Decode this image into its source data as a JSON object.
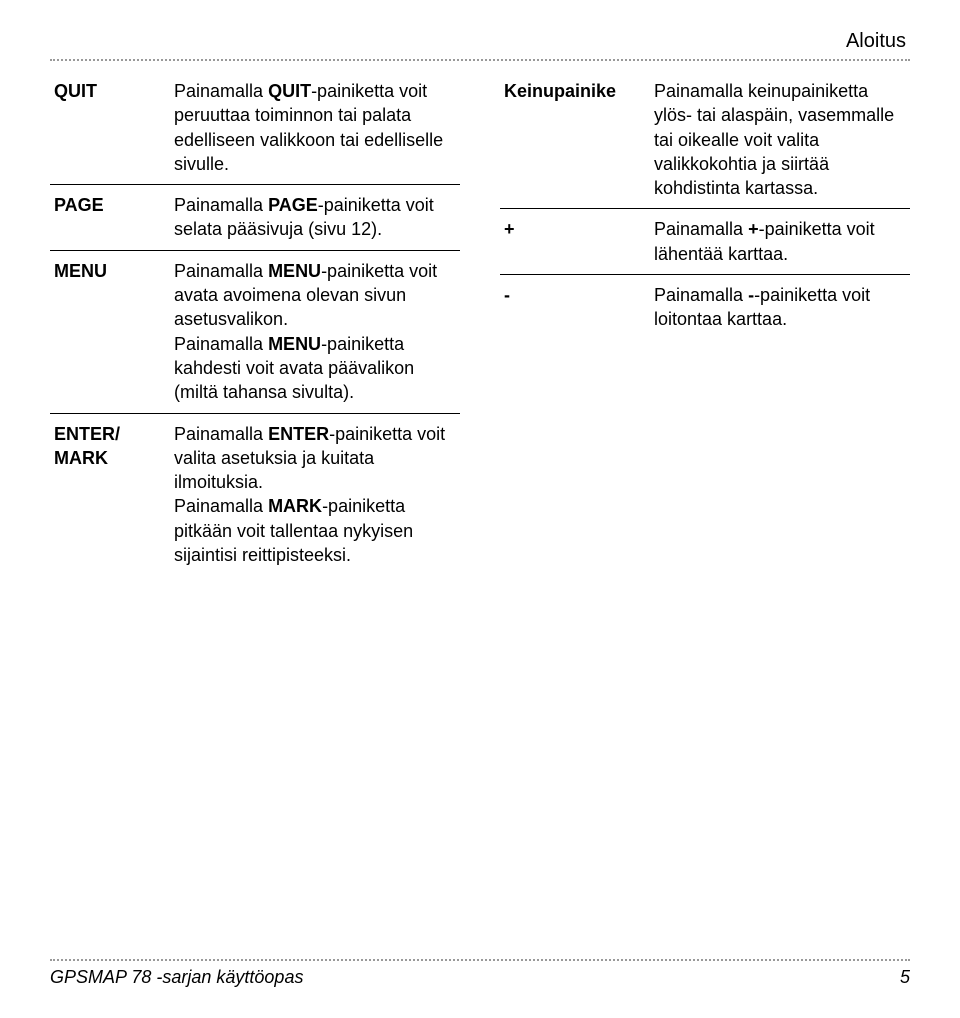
{
  "header": {
    "section": "Aloitus"
  },
  "left": {
    "rows": [
      {
        "key": "QUIT",
        "parts": [
          {
            "t": "Painamalla ",
            "b": false
          },
          {
            "t": "QUIT",
            "b": true
          },
          {
            "t": "-painiketta voit peruuttaa toiminnon tai palata edelliseen valikkoon tai edelliselle sivulle.",
            "b": false
          }
        ]
      },
      {
        "key": "PAGE",
        "parts": [
          {
            "t": "Painamalla ",
            "b": false
          },
          {
            "t": "PAGE",
            "b": true
          },
          {
            "t": "-painiketta voit selata pääsivuja (sivu 12).",
            "b": false
          }
        ]
      },
      {
        "key": "MENU",
        "parts": [
          {
            "t": "Painamalla ",
            "b": false
          },
          {
            "t": "MENU",
            "b": true
          },
          {
            "t": "-painiketta voit avata avoimena olevan sivun asetusvalikon.\nPainamalla ",
            "b": false
          },
          {
            "t": "MENU",
            "b": true
          },
          {
            "t": "-painiketta kahdesti voit avata päävalikon (miltä tahansa sivulta).",
            "b": false
          }
        ]
      },
      {
        "key": "ENTER/\nMARK",
        "parts": [
          {
            "t": "Painamalla ",
            "b": false
          },
          {
            "t": "ENTER",
            "b": true
          },
          {
            "t": "-painiketta voit valita asetuksia ja kuitata ilmoituksia.\nPainamalla ",
            "b": false
          },
          {
            "t": "MARK",
            "b": true
          },
          {
            "t": "-painiketta pitkään voit tallentaa nykyisen sijaintisi reittipisteeksi.",
            "b": false
          }
        ]
      }
    ]
  },
  "right": {
    "rows": [
      {
        "key": "Keinupainike",
        "parts": [
          {
            "t": "Painamalla keinupainiketta ylös- tai alaspäin, vasemmalle tai oikealle voit valita valikkokohtia ja siirtää kohdistinta kartassa.",
            "b": false
          }
        ]
      },
      {
        "key": "+",
        "parts": [
          {
            "t": "Painamalla ",
            "b": false
          },
          {
            "t": "+",
            "b": true
          },
          {
            "t": "-painiketta voit lähentää karttaa.",
            "b": false
          }
        ]
      },
      {
        "key": "-",
        "parts": [
          {
            "t": "Painamalla ",
            "b": false
          },
          {
            "t": "-",
            "b": true
          },
          {
            "t": "-painiketta voit loitontaa karttaa.",
            "b": false
          }
        ]
      }
    ]
  },
  "footer": {
    "title": "GPSMAP 78 -sarjan käyttöopas",
    "page": "5"
  },
  "style": {
    "border_color": "#000000"
  }
}
